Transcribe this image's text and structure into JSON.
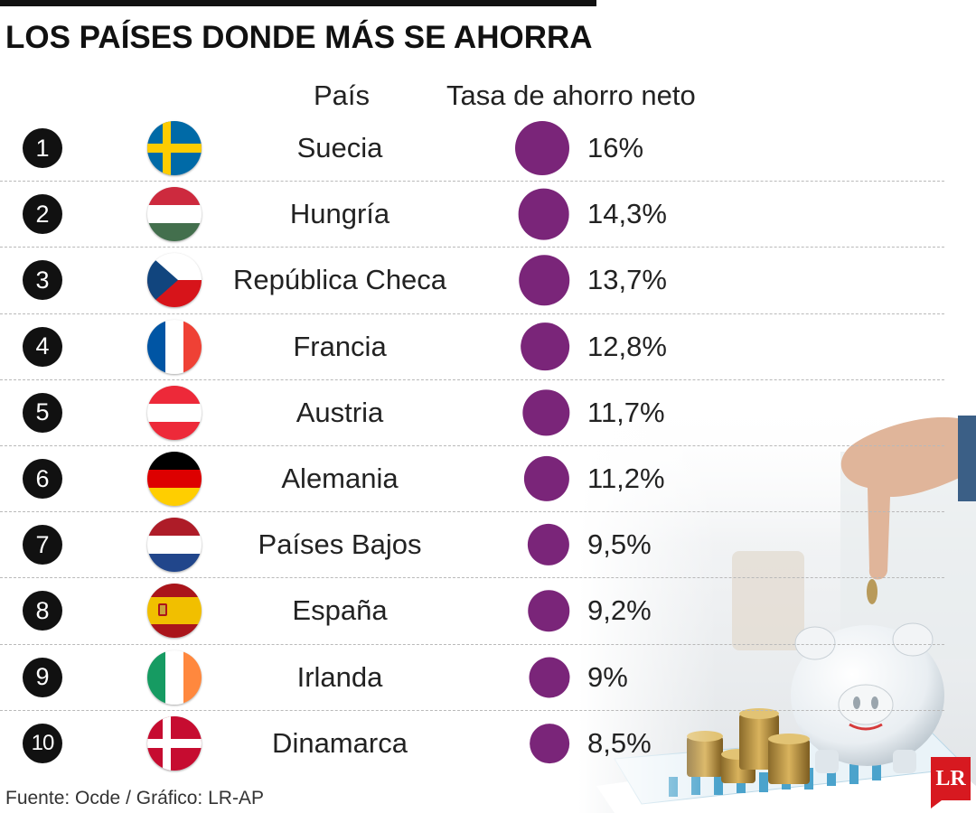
{
  "title": "LOS PAÍSES DONDE MÁS SE AHORRA",
  "headers": {
    "country": "País",
    "rate": "Tasa de ahorro neto"
  },
  "source": "Fuente: Ocde / Gráfico: LR-AP",
  "logo_text": "LR",
  "colors": {
    "bubble": "#7a2579",
    "rank_circle": "#111111",
    "logo": "#d71920"
  },
  "chart_data": {
    "type": "table",
    "title": "LOS PAÍSES DONDE MÁS SE AHORRA",
    "columns": [
      "País",
      "Tasa de ahorro neto"
    ],
    "rows": [
      {
        "rank": "1",
        "country": "Suecia",
        "flag": "sweden-flag-icon",
        "value": 16.0,
        "label": "16%"
      },
      {
        "rank": "2",
        "country": "Hungría",
        "flag": "hungary-flag-icon",
        "value": 14.3,
        "label": "14,3%"
      },
      {
        "rank": "3",
        "country": "República Checa",
        "flag": "czech-flag-icon",
        "value": 13.7,
        "label": "13,7%"
      },
      {
        "rank": "4",
        "country": "Francia",
        "flag": "france-flag-icon",
        "value": 12.8,
        "label": "12,8%"
      },
      {
        "rank": "5",
        "country": "Austria",
        "flag": "austria-flag-icon",
        "value": 11.7,
        "label": "11,7%"
      },
      {
        "rank": "6",
        "country": "Alemania",
        "flag": "germany-flag-icon",
        "value": 11.2,
        "label": "11,2%"
      },
      {
        "rank": "7",
        "country": "Países Bajos",
        "flag": "netherlands-flag-icon",
        "value": 9.5,
        "label": "9,5%"
      },
      {
        "rank": "8",
        "country": "España",
        "flag": "spain-flag-icon",
        "value": 9.2,
        "label": "9,2%"
      },
      {
        "rank": "9",
        "country": "Irlanda",
        "flag": "ireland-flag-icon",
        "value": 9.0,
        "label": "9%"
      },
      {
        "rank": "10",
        "country": "Dinamarca",
        "flag": "denmark-flag-icon",
        "value": 8.5,
        "label": "8,5%"
      }
    ]
  }
}
